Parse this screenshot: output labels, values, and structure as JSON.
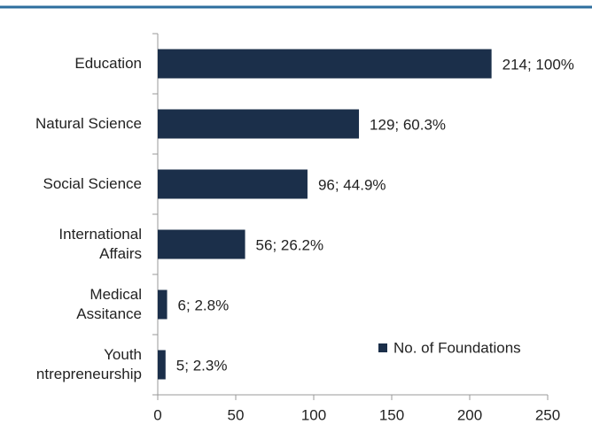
{
  "chart_data": {
    "type": "bar",
    "orientation": "horizontal",
    "categories": [
      "Education",
      "Natural Science",
      "Social Science",
      "International\nAffairs",
      "Medical\nAssitance",
      "Youth\nntrepreneurship"
    ],
    "series": [
      {
        "name": "No. of Foundations",
        "color": "#1b2f4a",
        "values": [
          214,
          129,
          96,
          56,
          6,
          5
        ],
        "value_labels": [
          "214; 100%",
          "129; 60.3%",
          "96; 44.9%",
          "56; 26.2%",
          "6; 2.8%",
          "5; 2.3%"
        ]
      }
    ],
    "xlim": [
      0,
      250
    ],
    "xticks": [
      0,
      50,
      100,
      150,
      200,
      250
    ],
    "legend": "lower right"
  }
}
